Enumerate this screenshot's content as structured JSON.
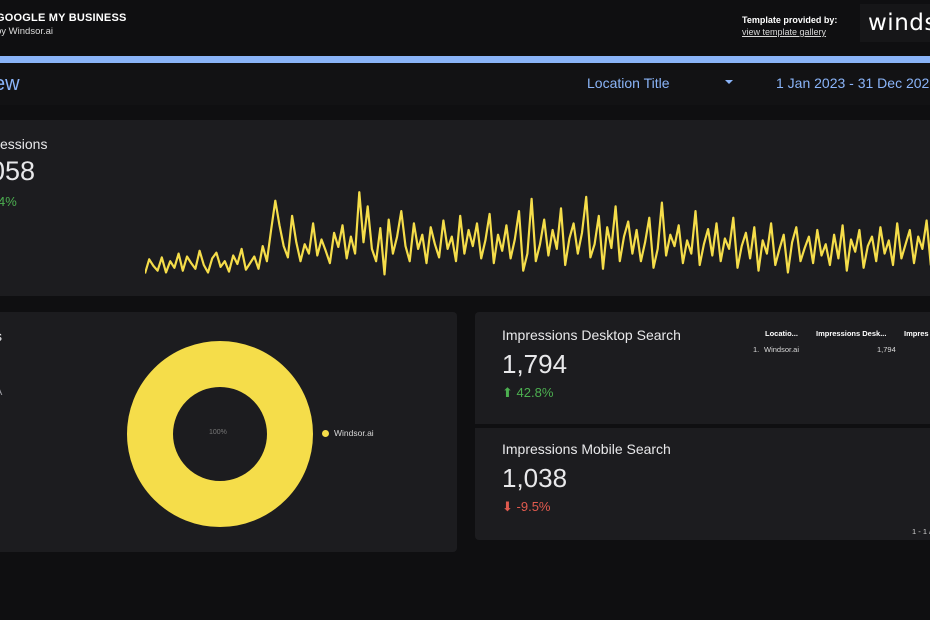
{
  "header": {
    "title": "GOOGLE MY BUSINESS",
    "subtitle": "by Windsor.ai",
    "provided_label": "Template provided by:",
    "gallery_link": "view template gallery",
    "logo_text": "winds"
  },
  "colors": {
    "accent": "#8ab4f8",
    "series": "#f5dd4a",
    "positive": "#4caf50",
    "negative": "#e05a4e"
  },
  "filters": {
    "page_name": "ew",
    "location_label": "Location Title",
    "date_range": "1 Jan 2023 - 31 Dec 202"
  },
  "impressions_card": {
    "title": "essions",
    "value": "058",
    "change": "4%"
  },
  "donut_card": {
    "title": "s",
    "subtitle": "A",
    "center_label": "100%",
    "legend": [
      "Windsor.ai"
    ]
  },
  "desktop_card": {
    "title": "Impressions Desktop Search",
    "value": "1,794",
    "change": "42.8%",
    "direction": "up"
  },
  "mobile_card": {
    "title": "Impressions Mobile Search",
    "value": "1,038",
    "change": "-9.5%",
    "direction": "down"
  },
  "table": {
    "headers": [
      "Locatio...",
      "Impressions Desk...",
      "Impres"
    ],
    "rows": [
      {
        "index": "1.",
        "location": "Windsor.ai",
        "desktop": "1,794"
      }
    ],
    "pager": "1 - 1 /"
  },
  "chart_data": {
    "type": "line",
    "title": "",
    "series": [
      {
        "values": [
          9,
          24,
          17,
          12,
          26,
          10,
          22,
          15,
          30,
          12,
          27,
          20,
          14,
          33,
          18,
          10,
          25,
          31,
          16,
          22,
          11,
          28,
          19,
          35,
          13,
          20,
          27,
          14,
          38,
          22,
          55,
          86,
          60,
          38,
          26,
          70,
          42,
          22,
          40,
          30,
          62,
          28,
          45,
          33,
          20,
          52,
          37,
          60,
          25,
          48,
          30,
          95,
          42,
          80,
          35,
          22,
          57,
          8,
          66,
          30,
          48,
          75,
          38,
          22,
          62,
          35,
          50,
          20,
          58,
          40,
          26,
          65,
          35,
          48,
          22,
          70,
          30,
          55,
          38,
          62,
          25,
          44,
          72,
          20,
          50,
          33,
          60,
          25,
          45,
          75,
          12,
          30,
          88,
          22,
          40,
          66,
          28,
          55,
          35,
          78,
          18,
          46,
          62,
          30,
          52,
          90,
          26,
          40,
          70,
          14,
          58,
          36,
          80,
          22,
          48,
          64,
          30,
          55,
          22,
          42,
          68,
          15,
          35,
          84,
          28,
          50,
          38,
          60,
          20,
          44,
          30,
          75,
          18,
          40,
          56,
          28,
          62,
          22,
          46,
          35,
          68,
          15,
          38,
          52,
          25,
          58,
          12,
          44,
          30,
          62,
          18,
          35,
          50,
          10,
          42,
          58,
          22,
          36,
          48,
          20,
          55,
          28,
          40,
          18,
          50,
          25,
          60,
          12,
          45,
          32,
          55,
          15,
          38,
          48,
          22,
          58,
          30,
          44,
          18,
          62,
          25,
          40,
          55,
          20,
          48,
          35,
          65,
          18,
          42
        ],
        "ylim": [
          0,
          110
        ]
      }
    ]
  }
}
